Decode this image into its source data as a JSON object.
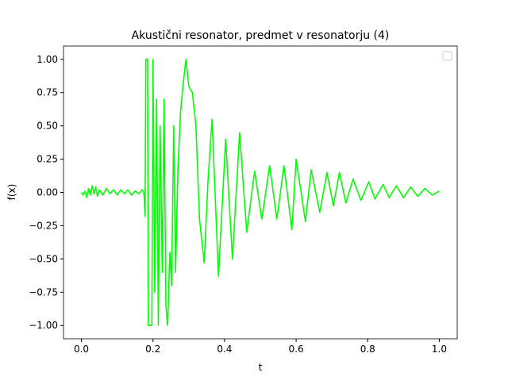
{
  "chart_data": {
    "type": "line",
    "title": "Akustični resonator, predmet v resonatorju (4)",
    "x_label": "t",
    "y_label": "f(x)",
    "xlim": [
      -0.05,
      1.05
    ],
    "ylim": [
      -1.1,
      1.1
    ],
    "xticks": [
      {
        "value": 0,
        "label": "0.0"
      },
      {
        "value": 0.2,
        "label": "0.2"
      },
      {
        "value": 0.4,
        "label": "0.4"
      },
      {
        "value": 0.6,
        "label": "0.6"
      },
      {
        "value": 0.8,
        "label": "0.8"
      },
      {
        "value": 1,
        "label": "1.0"
      }
    ],
    "yticks": [
      {
        "value": -1,
        "label": "−1.00"
      },
      {
        "value": -0.75,
        "label": "−0.75"
      },
      {
        "value": -0.5,
        "label": "−0.50"
      },
      {
        "value": -0.25,
        "label": "−0.25"
      },
      {
        "value": 0,
        "label": "0.00"
      },
      {
        "value": 0.25,
        "label": "0.25"
      },
      {
        "value": 0.5,
        "label": "0.50"
      },
      {
        "value": 0.75,
        "label": "0.75"
      },
      {
        "value": 1,
        "label": "1.00"
      }
    ],
    "grid": false,
    "x": [
      0.0,
      0.005,
      0.01,
      0.015,
      0.02,
      0.025,
      0.03,
      0.035,
      0.04,
      0.045,
      0.05,
      0.06,
      0.07,
      0.08,
      0.09,
      0.1,
      0.11,
      0.12,
      0.13,
      0.14,
      0.15,
      0.16,
      0.17,
      0.175,
      0.178,
      0.18,
      0.185,
      0.187,
      0.197,
      0.2,
      0.205,
      0.21,
      0.215,
      0.22,
      0.226,
      0.231,
      0.236,
      0.241,
      0.247,
      0.252,
      0.258,
      0.263,
      0.27,
      0.277,
      0.283,
      0.292,
      0.3,
      0.31,
      0.32,
      0.33,
      0.343,
      0.354,
      0.365,
      0.383,
      0.403,
      0.422,
      0.442,
      0.462,
      0.484,
      0.504,
      0.526,
      0.546,
      0.566,
      0.588,
      0.6,
      0.626,
      0.642,
      0.666,
      0.686,
      0.704,
      0.721,
      0.739,
      0.759,
      0.781,
      0.803,
      0.82,
      0.843,
      0.86,
      0.88,
      0.9,
      0.92,
      0.94,
      0.96,
      0.98,
      1.0
    ],
    "series": [
      {
        "color": "#00ff00",
        "values": [
          0.0,
          -0.02,
          0.01,
          -0.04,
          0.03,
          -0.02,
          0.05,
          -0.01,
          0.04,
          -0.03,
          0.02,
          -0.02,
          0.03,
          -0.01,
          0.02,
          -0.02,
          0.02,
          -0.01,
          0.02,
          -0.02,
          0.01,
          -0.01,
          0.02,
          -0.01,
          -0.18,
          1.0,
          1.0,
          -1.0,
          -1.0,
          1.0,
          -0.75,
          0.7,
          -1.0,
          0.5,
          -0.6,
          0.7,
          -0.85,
          -1.0,
          -0.45,
          -0.7,
          0.5,
          -0.6,
          0.2,
          0.6,
          0.78,
          1.0,
          0.8,
          0.75,
          0.5,
          -0.2,
          -0.53,
          0.1,
          0.55,
          -0.63,
          0.4,
          -0.5,
          0.45,
          -0.3,
          0.16,
          -0.2,
          0.2,
          -0.2,
          0.2,
          -0.28,
          0.25,
          -0.22,
          0.17,
          -0.15,
          0.15,
          -0.1,
          0.15,
          -0.08,
          0.1,
          -0.06,
          0.08,
          -0.05,
          0.06,
          -0.04,
          0.05,
          -0.04,
          0.04,
          -0.03,
          0.03,
          -0.02,
          0.01
        ]
      }
    ]
  }
}
